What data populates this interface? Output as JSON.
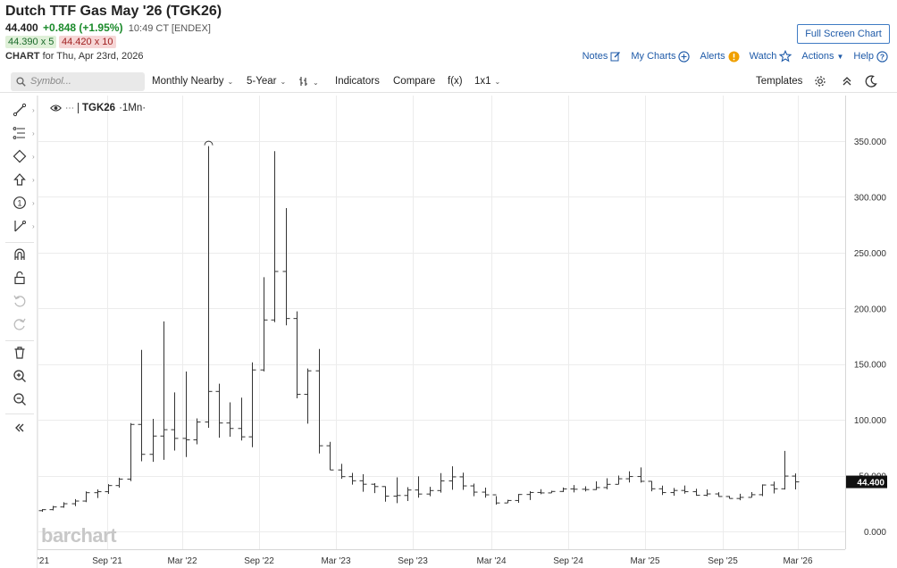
{
  "header": {
    "title": "Dutch TTF Gas May '26 (TGK26)",
    "last": "44.400",
    "change": "+0.848 (+1.95%)",
    "time": "10:49 CT [ENDEX]",
    "bid": "44.390 x 5",
    "ask": "44.420 x 10",
    "chart_label": "CHART",
    "chart_for": "for Thu, Apr 23rd, 2026",
    "fullscreen": "Full Screen Chart"
  },
  "topnav": {
    "notes": "Notes",
    "mycharts": "My Charts",
    "alerts": "Alerts",
    "watch": "Watch",
    "actions": "Actions",
    "help": "Help"
  },
  "toolbar": {
    "symbol_placeholder": "Symbol...",
    "period": "Monthly Nearby",
    "range": "5-Year",
    "indicators": "Indicators",
    "compare": "Compare",
    "fx": "f(x)",
    "layout": "1x1",
    "templates": "Templates"
  },
  "legend": {
    "symbol": "TGK26",
    "interval": "·1Mn·"
  },
  "watermark": "barchart",
  "colors": {
    "up": "#1a8a2a",
    "down": "#a02020",
    "link": "#1e5aa8",
    "bars": "#333333"
  },
  "chart_data": {
    "type": "ohlc",
    "interval": "monthly",
    "series": [
      {
        "name": "TGK26",
        "ohlc": [
          [
            18.6,
            19.9,
            17.6,
            19.5
          ],
          [
            19.5,
            22.8,
            18.8,
            21.9
          ],
          [
            21.9,
            26.1,
            21.2,
            24.8
          ],
          [
            24.8,
            28.9,
            22.6,
            27.2
          ],
          [
            27.2,
            35.8,
            26.2,
            34.7
          ],
          [
            34.7,
            37.6,
            29.9,
            35.6
          ],
          [
            35.6,
            42.3,
            33.6,
            41.1
          ],
          [
            41.1,
            48.2,
            39.2,
            46.9
          ],
          [
            46.9,
            97.1,
            45.1,
            95.9
          ],
          [
            95.9,
            162.8,
            62.9,
            69.1
          ],
          [
            69.1,
            100.9,
            62.4,
            85.5
          ],
          [
            85.5,
            188.3,
            64.2,
            91.2
          ],
          [
            91.2,
            124.6,
            72.5,
            83.4
          ],
          [
            83.4,
            143.4,
            66.7,
            82.1
          ],
          [
            82.1,
            101.3,
            78.1,
            98.1
          ],
          [
            98.1,
            345.5,
            92.9,
            125.5
          ],
          [
            125.5,
            132.5,
            84.0,
            97.2
          ],
          [
            97.2,
            115.7,
            84.9,
            92.3
          ],
          [
            92.3,
            119.9,
            81.5,
            84.8
          ],
          [
            84.8,
            151.6,
            75.5,
            144.8
          ],
          [
            144.8,
            228.0,
            143.5,
            189.6
          ],
          [
            189.6,
            341.0,
            187.6,
            233.1
          ],
          [
            233.1,
            289.9,
            184.8,
            190.9
          ],
          [
            190.9,
            197.3,
            119.3,
            122.9
          ],
          [
            122.9,
            146.1,
            96.6,
            144.0
          ],
          [
            144.0,
            163.6,
            69.9,
            76.8
          ],
          [
            76.8,
            80.3,
            58.7,
            55.1
          ],
          [
            55.1,
            60.6,
            47.2,
            49.1
          ],
          [
            49.1,
            52.5,
            41.9,
            45.4
          ],
          [
            45.4,
            51.3,
            35.5,
            42.3
          ],
          [
            42.3,
            43.2,
            34.3,
            40.2
          ],
          [
            40.2,
            40.4,
            26.6,
            31.6
          ],
          [
            31.6,
            48.5,
            25.3,
            32.2
          ],
          [
            32.2,
            39.6,
            27.2,
            37.1
          ],
          [
            37.1,
            49.4,
            30.2,
            33.5
          ],
          [
            33.5,
            39.9,
            31.5,
            36.6
          ],
          [
            36.6,
            52.3,
            34.7,
            45.3
          ],
          [
            45.3,
            58.4,
            37.3,
            48.9
          ],
          [
            48.9,
            52.7,
            37.2,
            40.8
          ],
          [
            40.8,
            42.8,
            31.5,
            35.2
          ],
          [
            35.2,
            39.2,
            30.2,
            32.8
          ],
          [
            32.8,
            31.6,
            24.0,
            25.5
          ],
          [
            25.5,
            28.3,
            26.5,
            27.7
          ],
          [
            27.7,
            33.5,
            25.6,
            33.1
          ],
          [
            33.1,
            36.0,
            28.1,
            34.9
          ],
          [
            34.9,
            37.8,
            33.3,
            34.5
          ],
          [
            34.5,
            36.4,
            34.8,
            35.8
          ],
          [
            35.8,
            39.3,
            35.2,
            38.1
          ],
          [
            38.1,
            41.5,
            34.9,
            37.8
          ],
          [
            37.8,
            40.4,
            35.8,
            37.5
          ],
          [
            37.5,
            44.9,
            37.1,
            39.3
          ],
          [
            39.3,
            47.7,
            37.7,
            42.2
          ],
          [
            42.2,
            50.1,
            43.2,
            47.2
          ],
          [
            47.2,
            53.9,
            43.9,
            49.2
          ],
          [
            49.2,
            57.4,
            43.7,
            44.9
          ],
          [
            44.9,
            45.2,
            35.9,
            38.2
          ],
          [
            38.2,
            41.0,
            32.6,
            34.8
          ],
          [
            34.8,
            38.9,
            31.9,
            36.7
          ],
          [
            36.7,
            41.1,
            33.8,
            35.6
          ],
          [
            35.6,
            38.2,
            31.9,
            32.4
          ],
          [
            32.4,
            37.6,
            31.5,
            33.6
          ],
          [
            33.6,
            35.1,
            31.0,
            31.3
          ],
          [
            31.3,
            31.7,
            29.4,
            29.5
          ],
          [
            29.5,
            33.7,
            27.9,
            30.5
          ],
          [
            30.5,
            35.2,
            31.1,
            32.9
          ],
          [
            32.9,
            42.1,
            31.6,
            41.6
          ],
          [
            41.6,
            44.7,
            34.0,
            38.2
          ],
          [
            38.2,
            72.2,
            37.5,
            49.6
          ],
          [
            49.6,
            52.0,
            37.6,
            44.4
          ]
        ]
      }
    ],
    "x_labels": [
      "'21",
      "Sep '21",
      "Mar '22",
      "Sep '22",
      "Mar '23",
      "Sep '23",
      "Mar '24",
      "Sep '24",
      "Mar '25",
      "Sep '25",
      "Mar '26"
    ],
    "y_ticks": [
      "0.000",
      "50.000",
      "100.000",
      "150.000",
      "200.000",
      "250.000",
      "300.000",
      "350.000"
    ],
    "ylim": [
      0,
      372
    ],
    "last_price_label": "44.400",
    "grid": true
  }
}
